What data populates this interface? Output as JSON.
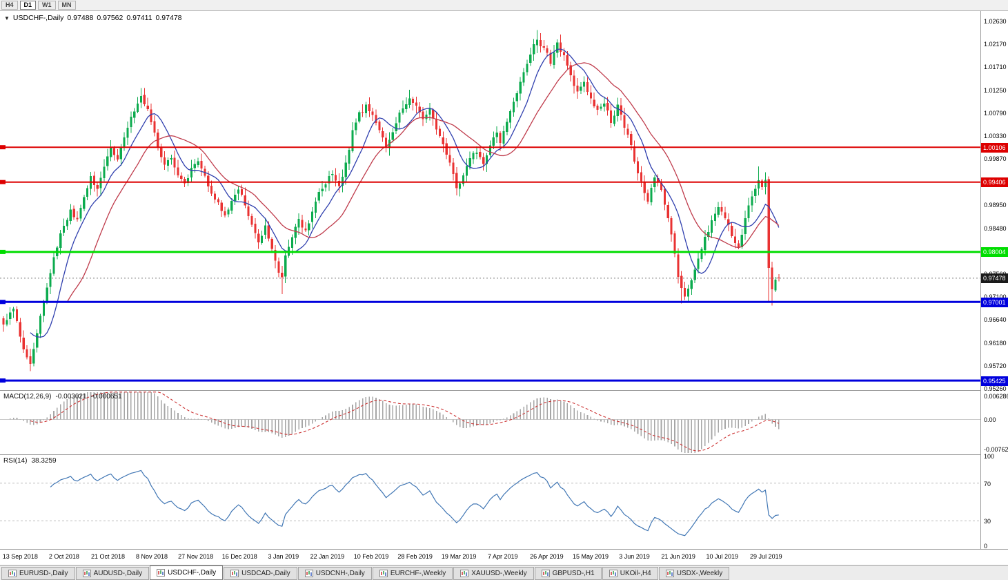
{
  "toolbar": {
    "timeframes": [
      "H4",
      "D1",
      "W1",
      "MN"
    ],
    "active_timeframe": "D1"
  },
  "chart": {
    "header": {
      "symbol": "USDCHF-,Daily",
      "open": "0.97488",
      "high": "0.97562",
      "low": "0.97411",
      "close": "0.97478"
    }
  },
  "chart_data": {
    "type": "candlestick",
    "symbol": "USDCHF",
    "timeframe": "Daily",
    "ohlc_current": {
      "open": 0.97488,
      "high": 0.97562,
      "low": 0.97411,
      "close": 0.97478
    },
    "y_ticks": [
      "1.02630",
      "1.02170",
      "1.01710",
      "1.01250",
      "1.00790",
      "1.00330",
      "0.99870",
      "0.98950",
      "0.98480",
      "0.97560",
      "0.97100",
      "0.96640",
      "0.96180",
      "0.95720",
      "0.95260"
    ],
    "x_labels": [
      "13 Sep 2018",
      "2 Oct 2018",
      "21 Oct 2018",
      "8 Nov 2018",
      "27 Nov 2018",
      "16 Dec 2018",
      "3 Jan 2019",
      "22 Jan 2019",
      "10 Feb 2019",
      "28 Feb 2019",
      "19 Mar 2019",
      "7 Apr 2019",
      "26 Apr 2019",
      "15 May 2019",
      "3 Jun 2019",
      "21 Jun 2019",
      "10 Jul 2019",
      "29 Jul 2019"
    ],
    "horizontal_lines": [
      {
        "label": "1.00106",
        "price": 1.00106,
        "color": "#dd0000",
        "thickness": 2
      },
      {
        "label": "0.99406",
        "price": 0.99406,
        "color": "#dd0000",
        "thickness": 2
      },
      {
        "label": "0.98004",
        "price": 0.98004,
        "color": "#00dd00",
        "thickness": 3
      },
      {
        "label": "0.97001",
        "price": 0.97001,
        "color": "#0000dd",
        "thickness": 3
      },
      {
        "label": "0.95425",
        "price": 0.95425,
        "color": "#0000dd",
        "thickness": 3
      }
    ],
    "current_price_badge": {
      "label": "0.97478",
      "price": 0.97478,
      "color": "#1a1a1a"
    },
    "candle_count": 232,
    "close_anchors": [
      [
        0,
        0.9655
      ],
      [
        3,
        0.969
      ],
      [
        6,
        0.9605
      ],
      [
        8,
        0.9572
      ],
      [
        10,
        0.964
      ],
      [
        12,
        0.97
      ],
      [
        14,
        0.976
      ],
      [
        16,
        0.9812
      ],
      [
        18,
        0.9855
      ],
      [
        20,
        0.9882
      ],
      [
        22,
        0.9864
      ],
      [
        24,
        0.9915
      ],
      [
        26,
        0.995
      ],
      [
        28,
        0.9928
      ],
      [
        30,
        0.9975
      ],
      [
        32,
        1.0012
      ],
      [
        34,
        0.9986
      ],
      [
        36,
        1.0032
      ],
      [
        38,
        1.0072
      ],
      [
        41,
        1.0112
      ],
      [
        43,
        1.0085
      ],
      [
        44,
        1.0058
      ],
      [
        46,
        1.0012
      ],
      [
        48,
        0.9976
      ],
      [
        50,
        0.9992
      ],
      [
        52,
        0.9958
      ],
      [
        54,
        0.9938
      ],
      [
        56,
        0.9966
      ],
      [
        58,
        0.9985
      ],
      [
        60,
        0.9952
      ],
      [
        62,
        0.992
      ],
      [
        64,
        0.9896
      ],
      [
        66,
        0.9872
      ],
      [
        68,
        0.9904
      ],
      [
        70,
        0.993
      ],
      [
        72,
        0.9896
      ],
      [
        74,
        0.9856
      ],
      [
        76,
        0.9822
      ],
      [
        78,
        0.985
      ],
      [
        80,
        0.9802
      ],
      [
        82,
        0.9762
      ],
      [
        83,
        0.9745
      ],
      [
        84,
        0.9792
      ],
      [
        86,
        0.983
      ],
      [
        88,
        0.9866
      ],
      [
        90,
        0.9842
      ],
      [
        92,
        0.988
      ],
      [
        94,
        0.992
      ],
      [
        96,
        0.9936
      ],
      [
        98,
        0.996
      ],
      [
        100,
        0.9932
      ],
      [
        102,
        0.9976
      ],
      [
        104,
        1.004
      ],
      [
        106,
        1.0076
      ],
      [
        108,
        1.0092
      ],
      [
        110,
        1.0072
      ],
      [
        112,
        1.0042
      ],
      [
        114,
        1.0012
      ],
      [
        116,
        1.0044
      ],
      [
        118,
        1.0076
      ],
      [
        121,
        1.0108
      ],
      [
        123,
        1.0092
      ],
      [
        125,
        1.0062
      ],
      [
        127,
        1.0088
      ],
      [
        129,
        1.0048
      ],
      [
        131,
        1.0012
      ],
      [
        133,
        0.9978
      ],
      [
        135,
        0.9926
      ],
      [
        137,
        0.9952
      ],
      [
        139,
        0.999
      ],
      [
        141,
        1.0002
      ],
      [
        143,
        0.9976
      ],
      [
        145,
        1.0012
      ],
      [
        147,
        1.004
      ],
      [
        148,
        1.0022
      ],
      [
        150,
        1.0062
      ],
      [
        152,
        1.0102
      ],
      [
        154,
        1.0142
      ],
      [
        156,
        1.0182
      ],
      [
        159,
        1.0228
      ],
      [
        161,
        1.0208
      ],
      [
        163,
        1.0182
      ],
      [
        165,
        1.0216
      ],
      [
        167,
        1.019
      ],
      [
        169,
        1.0152
      ],
      [
        171,
        1.0122
      ],
      [
        173,
        1.0146
      ],
      [
        175,
        1.0106
      ],
      [
        177,
        1.0082
      ],
      [
        179,
        1.0102
      ],
      [
        181,
        1.0062
      ],
      [
        183,
        1.0092
      ],
      [
        185,
        1.0052
      ],
      [
        187,
        1.0012
      ],
      [
        188,
        0.9985
      ],
      [
        190,
        0.994
      ],
      [
        192,
        0.9902
      ],
      [
        194,
        0.9952
      ],
      [
        196,
        0.992
      ],
      [
        198,
        0.987
      ],
      [
        200,
        0.98
      ],
      [
        201,
        0.9752
      ],
      [
        203,
        0.9712
      ],
      [
        205,
        0.9742
      ],
      [
        207,
        0.979
      ],
      [
        209,
        0.9828
      ],
      [
        211,
        0.9862
      ],
      [
        213,
        0.989
      ],
      [
        215,
        0.9872
      ],
      [
        217,
        0.983
      ],
      [
        219,
        0.9812
      ],
      [
        221,
        0.9866
      ],
      [
        223,
        0.9916
      ],
      [
        225,
        0.9946
      ],
      [
        226,
        0.993
      ],
      [
        227,
        0.994
      ],
      [
        228,
        0.977
      ],
      [
        229,
        0.9722
      ],
      [
        230,
        0.974
      ],
      [
        231,
        0.97478
      ]
    ],
    "wick_overrides": [
      {
        "i": 8,
        "low": 0.9561
      },
      {
        "i": 41,
        "high": 1.0129
      },
      {
        "i": 83,
        "low": 0.9716
      },
      {
        "i": 108,
        "high": 1.0098
      },
      {
        "i": 121,
        "high": 1.0126
      },
      {
        "i": 159,
        "high": 1.0246
      },
      {
        "i": 194,
        "high": 0.9955
      },
      {
        "i": 202,
        "low": 0.9697
      },
      {
        "i": 225,
        "high": 0.9972
      },
      {
        "i": 228,
        "low": 0.9701
      },
      {
        "i": 229,
        "low": 0.9693
      }
    ],
    "colors": {
      "up": "#0cab4e",
      "down": "#e93232",
      "ma_fast": "#2f3fae",
      "ma_slow": "#bf3b4b"
    },
    "ma_periods": {
      "fast": 9,
      "slow": 20
    },
    "indicators": {
      "macd": {
        "label": "MACD(12,26,9)",
        "value_main": "-0.003021",
        "value_signal": "-0.000651",
        "axis_labels": [
          "0.006286",
          "0.00",
          "-0.00762"
        ],
        "histogram_color": "#a6a6a6",
        "signal_color": "#cc3333"
      },
      "rsi": {
        "label": "RSI(14)",
        "value": "38.3259",
        "axis_labels": [
          "100",
          "70",
          "30",
          "0"
        ],
        "levels": [
          70,
          30
        ],
        "line_color": "#4076b4",
        "level_color": "#bbbbbb"
      }
    }
  },
  "tabs": [
    {
      "label": "EURUSD-,Daily",
      "active": false
    },
    {
      "label": "AUDUSD-,Daily",
      "active": false
    },
    {
      "label": "USDCHF-,Daily",
      "active": true
    },
    {
      "label": "USDCAD-,Daily",
      "active": false
    },
    {
      "label": "USDCNH-,Daily",
      "active": false
    },
    {
      "label": "EURCHF-,Weekly",
      "active": false
    },
    {
      "label": "XAUUSD-,Weekly",
      "active": false
    },
    {
      "label": "GBPUSD-,H1",
      "active": false
    },
    {
      "label": "UKOil-,H4",
      "active": false
    },
    {
      "label": "USDX-,Weekly",
      "active": false
    }
  ]
}
